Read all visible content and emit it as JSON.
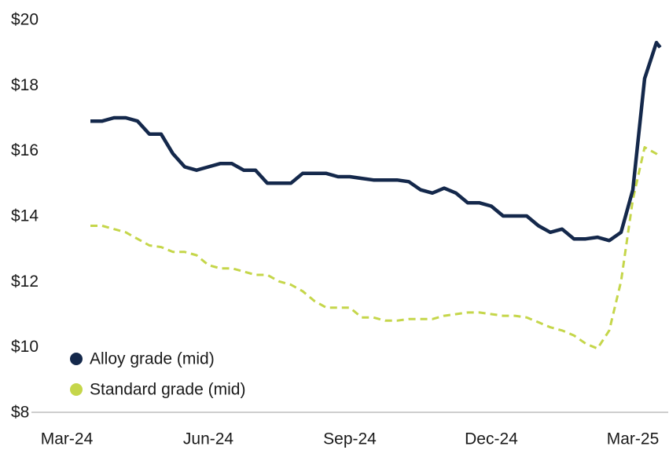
{
  "chart_data": {
    "type": "line",
    "x": [
      0.5,
      0.75,
      1,
      1.25,
      1.5,
      1.75,
      2,
      2.25,
      2.5,
      2.75,
      3,
      3.25,
      3.5,
      3.75,
      4,
      4.25,
      4.5,
      4.75,
      5,
      5.25,
      5.5,
      5.75,
      6,
      6.25,
      6.5,
      6.75,
      7,
      7.25,
      7.5,
      7.75,
      8,
      8.25,
      8.5,
      8.75,
      9,
      9.25,
      9.5,
      9.75,
      10,
      10.25,
      10.5,
      10.75,
      11,
      11.25,
      11.5,
      11.75,
      12,
      12.25,
      12.5,
      12.58
    ],
    "series": [
      {
        "name": "Alloy grade (mid)",
        "color": "#14284b",
        "dashed": false,
        "values": [
          16.9,
          16.9,
          17.0,
          17.0,
          16.9,
          16.5,
          16.5,
          15.9,
          15.5,
          15.4,
          15.5,
          15.6,
          15.6,
          15.4,
          15.4,
          15.0,
          15.0,
          15.0,
          15.3,
          15.3,
          15.3,
          15.2,
          15.2,
          15.15,
          15.1,
          15.1,
          15.1,
          15.05,
          14.8,
          14.7,
          14.85,
          14.7,
          14.4,
          14.4,
          14.3,
          14.0,
          14.0,
          14.0,
          13.7,
          13.5,
          13.6,
          13.3,
          13.3,
          13.35,
          13.25,
          13.5,
          14.8,
          18.2,
          19.3,
          19.15
        ]
      },
      {
        "name": "Standard grade (mid)",
        "color": "#c5d64a",
        "dashed": true,
        "values": [
          13.7,
          13.7,
          13.6,
          13.5,
          13.3,
          13.1,
          13.05,
          12.9,
          12.9,
          12.8,
          12.5,
          12.4,
          12.4,
          12.3,
          12.2,
          12.2,
          12.0,
          11.9,
          11.7,
          11.4,
          11.2,
          11.2,
          11.2,
          10.9,
          10.9,
          10.8,
          10.8,
          10.85,
          10.85,
          10.85,
          10.95,
          11.0,
          11.05,
          11.05,
          11.0,
          10.95,
          10.95,
          10.9,
          10.75,
          10.6,
          10.5,
          10.35,
          10.1,
          9.95,
          10.5,
          12.0,
          14.5,
          16.1,
          15.9,
          15.8
        ]
      }
    ],
    "xlim": [
      -0.75,
      12.75
    ],
    "xticks": [
      {
        "value": 0,
        "label": "Mar-24"
      },
      {
        "value": 3,
        "label": "Jun-24"
      },
      {
        "value": 6,
        "label": "Sep-24"
      },
      {
        "value": 9,
        "label": "Dec-24"
      },
      {
        "value": 12,
        "label": "Mar-25"
      }
    ],
    "ylim": [
      8,
      20
    ],
    "yticks": [
      {
        "value": 8,
        "label": "$8"
      },
      {
        "value": 10,
        "label": "$10"
      },
      {
        "value": 12,
        "label": "$12"
      },
      {
        "value": 14,
        "label": "$14"
      },
      {
        "value": 16,
        "label": "$16"
      },
      {
        "value": 18,
        "label": "$18"
      },
      {
        "value": 20,
        "label": "$20"
      }
    ],
    "grid": false,
    "legend": "lower-left"
  }
}
